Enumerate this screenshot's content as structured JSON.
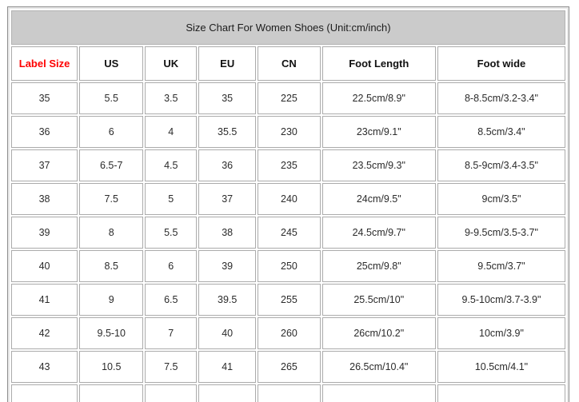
{
  "chart_data": {
    "type": "table",
    "title": "Size Chart For Women Shoes (Unit:cm/inch)",
    "columns": [
      "Label Size",
      "US",
      "UK",
      "EU",
      "CN",
      "Foot Length",
      "Foot wide"
    ],
    "rows": [
      [
        "35",
        "5.5",
        "3.5",
        "35",
        "225",
        "22.5cm/8.9\"",
        "8-8.5cm/3.2-3.4\""
      ],
      [
        "36",
        "6",
        "4",
        "35.5",
        "230",
        "23cm/9.1\"",
        "8.5cm/3.4\""
      ],
      [
        "37",
        "6.5-7",
        "4.5",
        "36",
        "235",
        "23.5cm/9.3\"",
        "8.5-9cm/3.4-3.5\""
      ],
      [
        "38",
        "7.5",
        "5",
        "37",
        "240",
        "24cm/9.5\"",
        "9cm/3.5\""
      ],
      [
        "39",
        "8",
        "5.5",
        "38",
        "245",
        "24.5cm/9.7\"",
        "9-9.5cm/3.5-3.7\""
      ],
      [
        "40",
        "8.5",
        "6",
        "39",
        "250",
        "25cm/9.8\"",
        "9.5cm/3.7\""
      ],
      [
        "41",
        "9",
        "6.5",
        "39.5",
        "255",
        "25.5cm/10\"",
        "9.5-10cm/3.7-3.9\""
      ],
      [
        "42",
        "9.5-10",
        "7",
        "40",
        "260",
        "26cm/10.2\"",
        "10cm/3.9\""
      ],
      [
        "43",
        "10.5",
        "7.5",
        "41",
        "265",
        "26.5cm/10.4\"",
        "10.5cm/4.1\""
      ]
    ],
    "layout": {
      "legend": "none",
      "grid": "full-cell-borders",
      "title_position": "top-banner"
    }
  },
  "colors": {
    "title_background": "#cbcbcb",
    "label_size_header_text": "#fe0000",
    "header_text": "#111111",
    "cell_text": "#2b2b2b",
    "cell_border": "#ababab",
    "outer_frame": "#8f8f8f"
  }
}
